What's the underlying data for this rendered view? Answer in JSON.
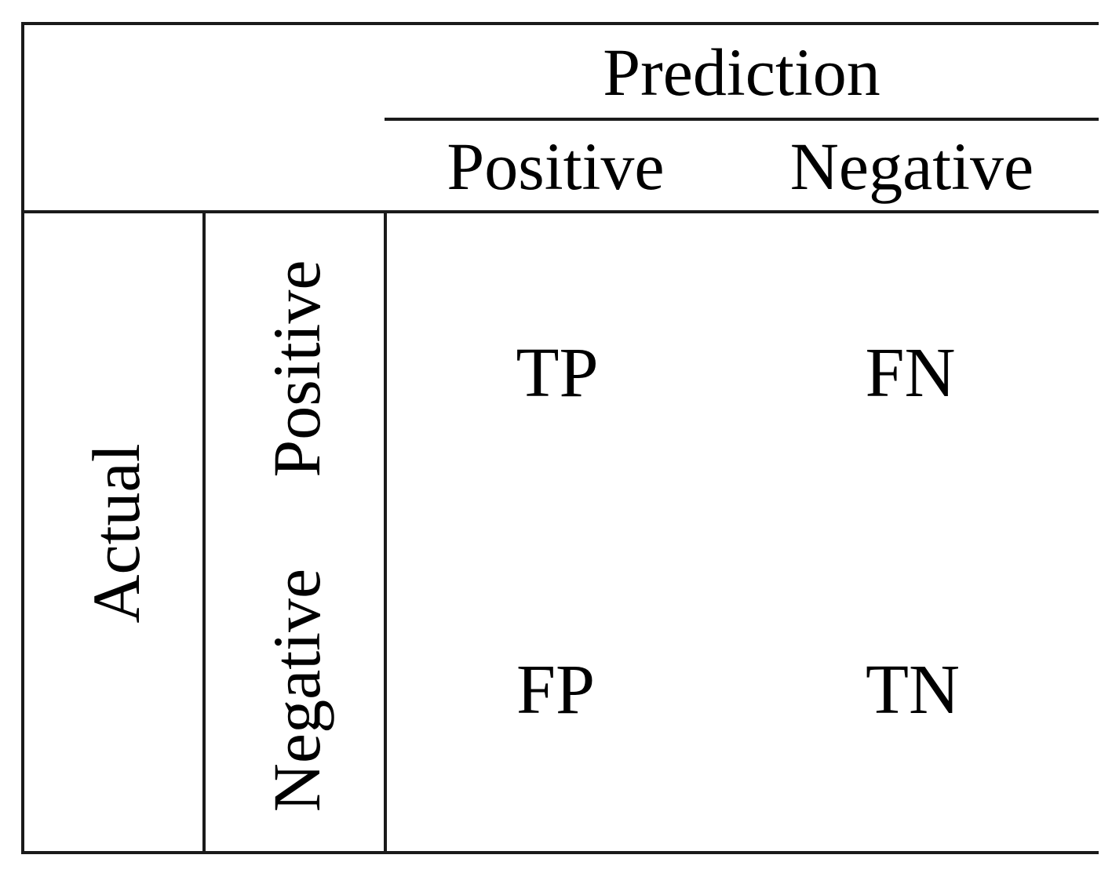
{
  "matrix": {
    "prediction_header": "Prediction",
    "actual_header": "Actual",
    "predicted_classes": [
      "Positive",
      "Negative"
    ],
    "actual_classes": [
      "Positive",
      "Negative"
    ],
    "cells": [
      [
        "TP",
        "FN"
      ],
      [
        "FP",
        "TN"
      ]
    ]
  }
}
